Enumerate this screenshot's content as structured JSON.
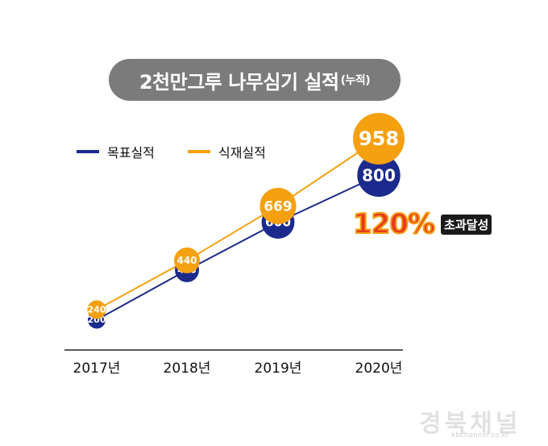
{
  "title": {
    "main": "2천만그루 나무심기 실적",
    "sub": "(누적)"
  },
  "legend": {
    "target": "목표실적",
    "planted": "식재실적"
  },
  "annotation": {
    "percent": "120%",
    "text": "초과달성"
  },
  "watermark": {
    "text": "경북채널",
    "sub": "kbchannel.co.kr"
  },
  "colors": {
    "target": "#1b2a8c",
    "planted": "#f4a00f",
    "pill": "#7b7b7b"
  },
  "chart_data": {
    "type": "line",
    "title": "2천만그루 나무심기 실적(누적)",
    "categories": [
      "2017년",
      "2018년",
      "2019년",
      "2020년"
    ],
    "series": [
      {
        "name": "목표실적",
        "values": [
          200,
          400,
          600,
          800
        ]
      },
      {
        "name": "식재실적",
        "values": [
          240,
          440,
          669,
          958
        ]
      }
    ],
    "ylim": [
      100,
      1000
    ],
    "xlabel": "",
    "ylabel": ""
  }
}
